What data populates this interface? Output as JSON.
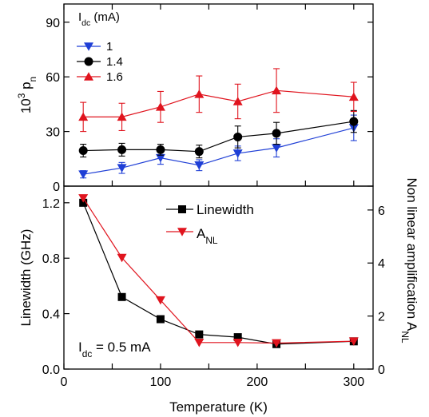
{
  "chart_data": [
    {
      "type": "scatter",
      "panel": "top",
      "ylabel": {
        "base": "10",
        "sup": "3",
        "main": " p",
        "sub": "n"
      },
      "ylim": [
        0,
        100
      ],
      "xlim": [
        0,
        320
      ],
      "yticks": [
        0,
        30,
        60,
        90
      ],
      "legend_title": {
        "main": "I",
        "sub": "dc",
        "rest": " (mA)"
      },
      "legend_placement": "top-left",
      "series": [
        {
          "name": "1",
          "color": "#1f3fd6",
          "marker": "triangle-down",
          "x": [
            20,
            60,
            100,
            140,
            180,
            220,
            300
          ],
          "y": [
            6.5,
            10,
            15.5,
            11.5,
            18,
            21,
            32
          ],
          "err": [
            2,
            3,
            3.5,
            3,
            4,
            5,
            7
          ]
        },
        {
          "name": "1.4",
          "color": "#000000",
          "marker": "circle",
          "x": [
            20,
            60,
            100,
            140,
            180,
            220,
            300
          ],
          "y": [
            19.5,
            20,
            20,
            19,
            27,
            29,
            35.5
          ],
          "err": [
            3.5,
            3.5,
            3,
            3.5,
            6,
            6,
            6
          ]
        },
        {
          "name": "1.6",
          "color": "#e0141e",
          "marker": "triangle-up",
          "x": [
            20,
            60,
            100,
            140,
            180,
            220,
            300
          ],
          "y": [
            38,
            38,
            43.5,
            50.5,
            46.5,
            52.5,
            49
          ],
          "err": [
            8,
            7.5,
            8.5,
            10,
            9.5,
            12,
            8
          ]
        }
      ]
    },
    {
      "type": "line",
      "panel": "bottom",
      "xlabel": "Temperature (K)",
      "xlim": [
        0,
        320
      ],
      "xticks": [
        0,
        50,
        100,
        150,
        200,
        250,
        300
      ],
      "ylabel_left": "Linewidth (GHz)",
      "ylim_left": [
        0,
        1.32
      ],
      "yticks_left": [
        "0.0",
        "0.4",
        "0.8",
        "1.2"
      ],
      "ylabel_right": {
        "main": "Non linear amplification A",
        "sub": "NL"
      },
      "ylim_right": [
        0,
        6.9
      ],
      "yticks_right": [
        "0",
        "2",
        "4",
        "6"
      ],
      "annotation": {
        "main": "I",
        "sub": "dc",
        "rest": " = 0.5 mA"
      },
      "series": [
        {
          "name": "Linewidth",
          "axis": "left",
          "color": "#000000",
          "marker": "square",
          "x": [
            20,
            60,
            100,
            140,
            180,
            220,
            300
          ],
          "y": [
            1.2,
            0.52,
            0.36,
            0.25,
            0.23,
            0.18,
            0.2
          ]
        },
        {
          "name": {
            "main": "A",
            "sub": "NL"
          },
          "axis": "right",
          "color": "#e0141e",
          "marker": "triangle-down",
          "x": [
            20,
            60,
            100,
            140,
            180,
            220,
            300
          ],
          "y": [
            6.45,
            4.2,
            2.6,
            1.0,
            1.0,
            0.98,
            1.05
          ]
        }
      ]
    }
  ]
}
